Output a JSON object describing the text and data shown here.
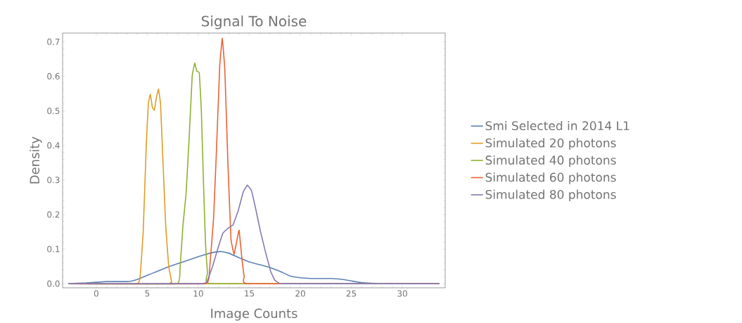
{
  "chart_data": {
    "type": "line",
    "title": "Signal To Noise",
    "xlabel": "Image Counts",
    "ylabel": "Density",
    "xlim": [
      -3.3,
      34.2
    ],
    "ylim": [
      -0.012,
      0.725
    ],
    "xticks": [
      0,
      5,
      10,
      15,
      20,
      25,
      30
    ],
    "yticks": [
      {
        "value": 0,
        "label": "0.0"
      },
      0.1,
      0.2,
      0.3,
      0.4,
      0.5,
      0.6,
      0.7
    ],
    "grid": false,
    "legend": "right",
    "marker": "none",
    "line_style": "solid",
    "series": [
      {
        "name": "Smi Selected in 2014 L1",
        "color": "#5e81b5",
        "x": [
          -2.75,
          -1,
          0,
          1,
          2,
          3,
          3.5,
          4,
          5,
          6,
          7,
          8,
          9,
          10,
          11,
          11.8,
          12.3,
          13,
          14,
          15,
          16,
          17,
          18,
          19,
          20,
          21,
          22,
          23,
          24,
          25,
          26,
          27,
          28,
          30,
          32,
          33.6
        ],
        "values": [
          0.0,
          0.002,
          0.004,
          0.006,
          0.006,
          0.006,
          0.008,
          0.012,
          0.024,
          0.036,
          0.048,
          0.058,
          0.068,
          0.078,
          0.087,
          0.092,
          0.093,
          0.088,
          0.075,
          0.063,
          0.055,
          0.047,
          0.036,
          0.022,
          0.017,
          0.015,
          0.015,
          0.015,
          0.013,
          0.008,
          0.003,
          0.001,
          0.0,
          0.0,
          0.0,
          0.0
        ]
      },
      {
        "name": "Simulated 20 photons",
        "color": "#e19c24",
        "x": [
          -2.75,
          4.0,
          4.3,
          4.6,
          4.9,
          5.1,
          5.3,
          5.5,
          5.7,
          5.9,
          6.1,
          6.3,
          6.5,
          6.8,
          7.1,
          7.4,
          7.7,
          33.6
        ],
        "values": [
          0.0,
          0.0,
          0.02,
          0.15,
          0.4,
          0.52,
          0.548,
          0.51,
          0.502,
          0.54,
          0.563,
          0.52,
          0.38,
          0.17,
          0.05,
          0.005,
          0.0,
          0.0
        ]
      },
      {
        "name": "Simulated 40 photons",
        "color": "#8fb032",
        "x": [
          -2.75,
          7.9,
          8.2,
          8.5,
          8.8,
          9.1,
          9.4,
          9.65,
          9.85,
          10.1,
          10.3,
          10.5,
          10.7,
          10.9,
          11.2,
          33.6
        ],
        "values": [
          0.0,
          0.0,
          0.04,
          0.17,
          0.26,
          0.42,
          0.6,
          0.638,
          0.615,
          0.61,
          0.5,
          0.3,
          0.12,
          0.03,
          0.0,
          0.0
        ]
      },
      {
        "name": "Simulated 60 photons",
        "color": "#eb6235",
        "x": [
          -2.75,
          10.7,
          11.1,
          11.5,
          11.8,
          12.1,
          12.35,
          12.6,
          12.9,
          13.2,
          13.5,
          13.75,
          14.0,
          14.25,
          14.5,
          14.8,
          33.6
        ],
        "values": [
          0.0,
          0.0,
          0.04,
          0.19,
          0.4,
          0.63,
          0.71,
          0.62,
          0.35,
          0.13,
          0.085,
          0.12,
          0.155,
          0.08,
          0.02,
          0.0,
          0.0
        ]
      },
      {
        "name": "Simulated 80 photons",
        "color": "#8778b3",
        "x": [
          -2.75,
          10.4,
          10.9,
          11.4,
          11.9,
          12.4,
          12.9,
          13.4,
          13.9,
          14.4,
          14.8,
          15.2,
          15.6,
          16.1,
          16.6,
          17.1,
          17.5,
          17.9,
          18.3,
          33.6
        ],
        "values": [
          0.0,
          0.0,
          0.01,
          0.05,
          0.1,
          0.145,
          0.16,
          0.17,
          0.21,
          0.265,
          0.285,
          0.27,
          0.22,
          0.15,
          0.09,
          0.035,
          0.01,
          0.002,
          0.0,
          0.0
        ]
      }
    ]
  }
}
